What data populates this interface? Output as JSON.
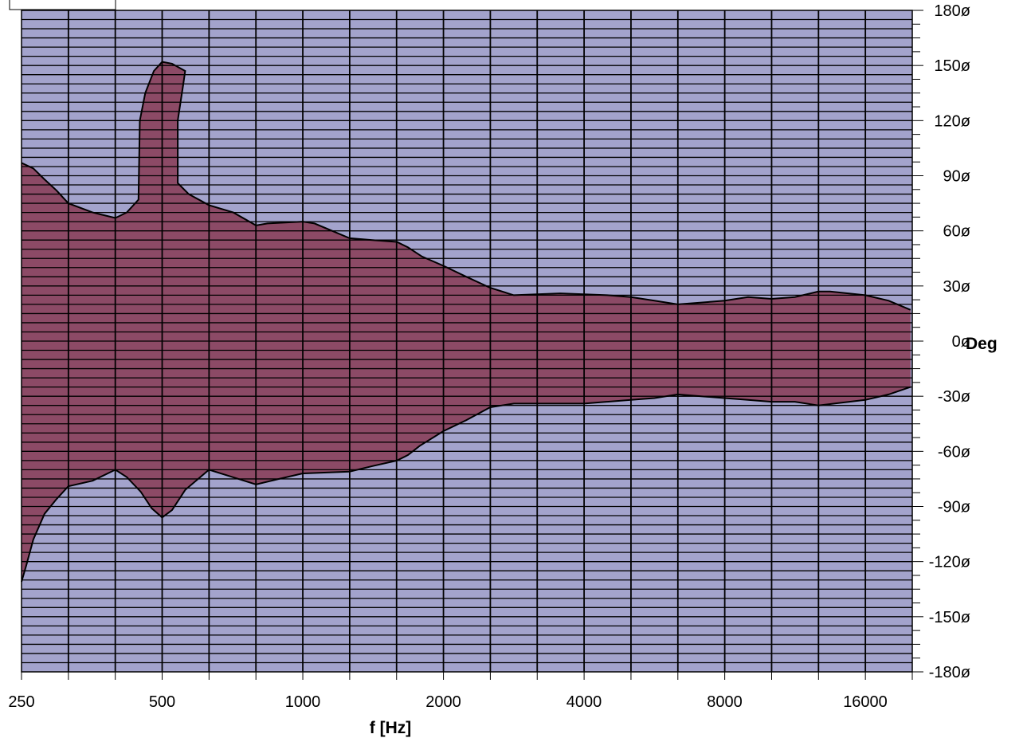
{
  "chart_data": {
    "type": "area",
    "title": "",
    "xlabel": "f [Hz]",
    "ylabel": "Deg",
    "x_scale": "log2",
    "xlim": [
      250,
      20000
    ],
    "ylim": [
      -180,
      180
    ],
    "x_ticks": [
      250,
      500,
      1000,
      2000,
      4000,
      8000,
      16000
    ],
    "x_tick_labels": [
      "250",
      "500",
      "1000",
      "2000",
      "4000",
      "8000",
      "16000"
    ],
    "y_ticks": [
      180,
      150,
      120,
      90,
      60,
      30,
      0,
      -30,
      -60,
      -90,
      -120,
      -150,
      -180
    ],
    "y_tick_labels": [
      "180ø",
      "150ø",
      "120ø",
      "90ø",
      "60ø",
      "30ø",
      "0ø",
      "-30ø",
      "-60ø",
      "-90ø",
      "-120ø",
      "-150ø",
      "-180ø"
    ],
    "grid": true,
    "legend": "none",
    "colors": {
      "background": "#a3a3cc",
      "fill": "#8c4a66",
      "grid": "#000000",
      "outline": "#000000"
    },
    "series": [
      {
        "role": "upper",
        "points": [
          [
            250,
            97
          ],
          [
            265,
            94
          ],
          [
            280,
            88
          ],
          [
            297,
            82
          ],
          [
            315,
            75
          ],
          [
            355,
            70
          ],
          [
            397,
            67
          ],
          [
            420,
            70
          ],
          [
            445,
            77
          ],
          [
            448,
            120
          ],
          [
            460,
            135
          ],
          [
            480,
            147
          ],
          [
            500,
            152
          ],
          [
            525,
            151
          ],
          [
            560,
            147
          ],
          [
            555,
            140
          ],
          [
            540,
            120
          ],
          [
            540,
            86
          ],
          [
            570,
            80
          ],
          [
            630,
            74
          ],
          [
            710,
            70
          ],
          [
            794,
            63
          ],
          [
            840,
            64
          ],
          [
            1000,
            65
          ],
          [
            1060,
            64
          ],
          [
            1260,
            56
          ],
          [
            1410,
            55
          ],
          [
            1590,
            54
          ],
          [
            1680,
            51
          ],
          [
            1800,
            46
          ],
          [
            2000,
            41
          ],
          [
            2240,
            35
          ],
          [
            2520,
            29
          ],
          [
            2830,
            25
          ],
          [
            3560,
            26
          ],
          [
            4490,
            25
          ],
          [
            5040,
            24
          ],
          [
            5660,
            22
          ],
          [
            6350,
            20
          ],
          [
            7130,
            21
          ],
          [
            8000,
            22
          ],
          [
            8980,
            24
          ],
          [
            10080,
            23
          ],
          [
            11310,
            24
          ],
          [
            12700,
            27
          ],
          [
            13450,
            27
          ],
          [
            16000,
            25
          ],
          [
            17960,
            22
          ],
          [
            20000,
            17
          ]
        ]
      },
      {
        "role": "lower",
        "points": [
          [
            250,
            -131
          ],
          [
            256,
            -122
          ],
          [
            265,
            -108
          ],
          [
            280,
            -94
          ],
          [
            297,
            -86
          ],
          [
            315,
            -79
          ],
          [
            355,
            -76
          ],
          [
            397,
            -70
          ],
          [
            420,
            -74
          ],
          [
            450,
            -82
          ],
          [
            475,
            -91
          ],
          [
            500,
            -96
          ],
          [
            525,
            -92
          ],
          [
            560,
            -81
          ],
          [
            630,
            -70
          ],
          [
            707,
            -74
          ],
          [
            794,
            -78
          ],
          [
            890,
            -75
          ],
          [
            1000,
            -72
          ],
          [
            1260,
            -71
          ],
          [
            1410,
            -68
          ],
          [
            1590,
            -65
          ],
          [
            1680,
            -62
          ],
          [
            1780,
            -57
          ],
          [
            2000,
            -49
          ],
          [
            2240,
            -43
          ],
          [
            2520,
            -36
          ],
          [
            2830,
            -34
          ],
          [
            3560,
            -34
          ],
          [
            4000,
            -34
          ],
          [
            5040,
            -32
          ],
          [
            5660,
            -31
          ],
          [
            6350,
            -29
          ],
          [
            7130,
            -30
          ],
          [
            8000,
            -31
          ],
          [
            8980,
            -32
          ],
          [
            10080,
            -33
          ],
          [
            11310,
            -33
          ],
          [
            12700,
            -35
          ],
          [
            16000,
            -32
          ],
          [
            17960,
            -29
          ],
          [
            20000,
            -25
          ]
        ]
      }
    ]
  }
}
